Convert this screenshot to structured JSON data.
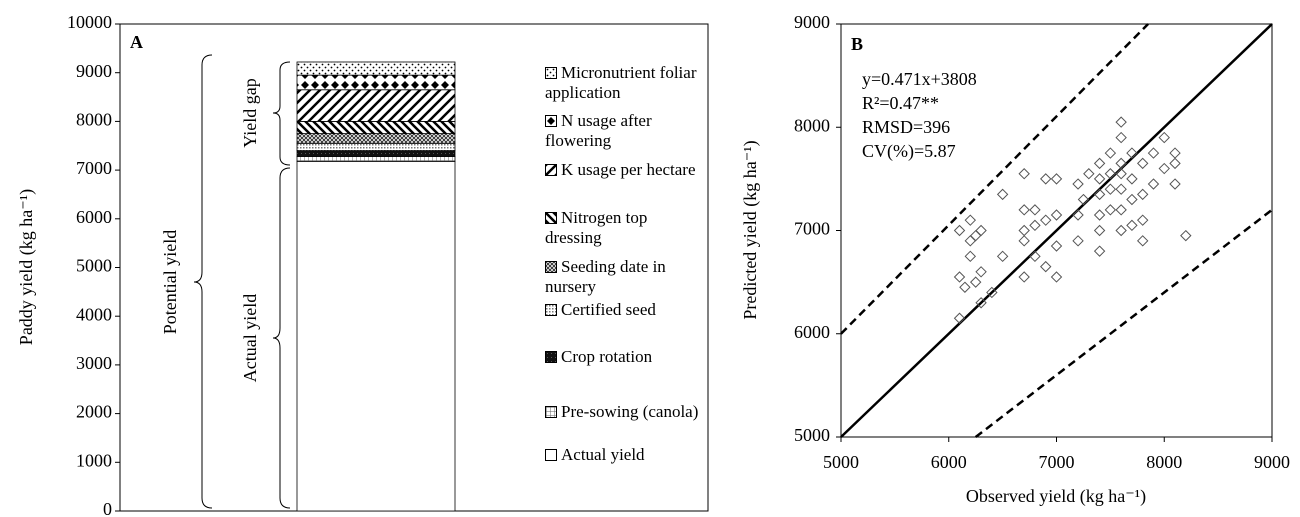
{
  "chart_data": [
    {
      "type": "stacked_bar",
      "panel": "A",
      "ylabel": "Paddy yield (kg ha⁻¹)",
      "categories": [
        null
      ],
      "ylim": [
        0,
        10000
      ],
      "yticks": [
        0,
        1000,
        2000,
        3000,
        4000,
        5000,
        6000,
        7000,
        8000,
        9000,
        10000
      ],
      "brackets": [
        "Potential yield",
        "Yield gap",
        "Actual yield"
      ],
      "series": [
        {
          "name": "Actual yield",
          "pattern": "blank",
          "values": [
            7180
          ]
        },
        {
          "name": "Pre-sowing (canola)",
          "pattern": "grid",
          "values": [
            100
          ]
        },
        {
          "name": "Crop rotation",
          "pattern": "solid",
          "values": [
            120
          ]
        },
        {
          "name": "Certified seed",
          "pattern": "fine",
          "values": [
            150
          ]
        },
        {
          "name": "Seeding date in nursery",
          "pattern": "cross",
          "values": [
            200
          ]
        },
        {
          "name": "Nitrogen top dressing",
          "pattern": "back",
          "values": [
            250
          ]
        },
        {
          "name": "K usage per hectare",
          "pattern": "slash",
          "values": [
            650
          ]
        },
        {
          "name": "N usage after flowering",
          "pattern": "diamond",
          "values": [
            300
          ]
        },
        {
          "name": "Micronutrient foliar application",
          "pattern": "dot",
          "values": [
            270
          ]
        }
      ]
    },
    {
      "type": "scatter",
      "panel": "B",
      "xlabel": "Observed yield (kg ha⁻¹)",
      "ylabel": "Predicted yield (kg ha⁻¹)",
      "xlim": [
        5000,
        9000
      ],
      "ylim": [
        5000,
        9000
      ],
      "xticks": [
        5000,
        6000,
        7000,
        8000,
        9000
      ],
      "yticks": [
        5000,
        6000,
        7000,
        8000,
        9000
      ],
      "color": "#555555",
      "annotations": [
        "y=0.471x+3808",
        "R²=0.47**",
        "RMSD=396",
        "CV(%)=5.87"
      ],
      "lines": [
        {
          "x": [
            5000,
            9000
          ],
          "y": [
            5000,
            9000
          ],
          "style": "solid"
        },
        {
          "x": [
            5000,
            7850
          ],
          "y": [
            6000,
            9000
          ],
          "style": "dashed"
        },
        {
          "x": [
            6250,
            9000
          ],
          "y": [
            5000,
            7200
          ],
          "style": "dashed"
        }
      ],
      "x": [
        6100,
        6100,
        6100,
        6150,
        6200,
        6200,
        6200,
        6250,
        6250,
        6300,
        6300,
        6300,
        6400,
        6500,
        6500,
        6700,
        6700,
        6700,
        6700,
        6700,
        6800,
        6800,
        6800,
        6900,
        6900,
        6900,
        7000,
        7000,
        7000,
        7000,
        7200,
        7200,
        7200,
        7250,
        7300,
        7400,
        7400,
        7400,
        7400,
        7400,
        7400,
        7500,
        7500,
        7500,
        7500,
        7600,
        7600,
        7600,
        7600,
        7600,
        7600,
        7600,
        7700,
        7700,
        7700,
        7700,
        7800,
        7800,
        7800,
        7800,
        7900,
        7900,
        8000,
        8000,
        8100,
        8100,
        8100,
        8200
      ],
      "y": [
        6150,
        6550,
        7000,
        6450,
        6750,
        6900,
        7100,
        6500,
        6950,
        6300,
        6600,
        7000,
        6400,
        6750,
        7350,
        6550,
        6900,
        7000,
        7200,
        7550,
        6750,
        7050,
        7200,
        6650,
        7100,
        7500,
        6550,
        6850,
        7150,
        7500,
        6900,
        7150,
        7450,
        7300,
        7550,
        6800,
        7000,
        7150,
        7350,
        7500,
        7650,
        7200,
        7400,
        7550,
        7750,
        7000,
        7200,
        7400,
        7550,
        7650,
        7900,
        8050,
        7050,
        7300,
        7500,
        7750,
        6900,
        7100,
        7350,
        7650,
        7450,
        7750,
        7600,
        7900,
        7450,
        7650,
        7750,
        6950
      ]
    }
  ]
}
